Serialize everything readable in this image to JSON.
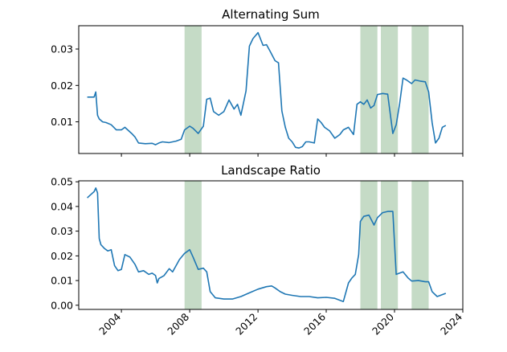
{
  "chart_data": [
    {
      "type": "line",
      "title": "Alternating Sum",
      "xlabel": "",
      "ylabel": "",
      "xlim": [
        2001.5,
        2024.0
      ],
      "ylim": [
        0.0013,
        0.0364
      ],
      "yticks": [
        0.01,
        0.02,
        0.03
      ],
      "ytick_labels": [
        "0.01",
        "0.02",
        "0.03"
      ],
      "line_color": "#1f77b4",
      "band_color": "#2e7d32",
      "shaded_intervals": [
        [
          2007.7,
          2008.7
        ],
        [
          2018.0,
          2019.0
        ],
        [
          2019.2,
          2020.2
        ],
        [
          2021.0,
          2022.0
        ]
      ],
      "x": [
        2002.0,
        2002.4,
        2002.5,
        2002.6,
        2002.7,
        2002.9,
        2003.1,
        2003.4,
        2003.7,
        2004.0,
        2004.2,
        2004.6,
        2004.8,
        2005.0,
        2005.4,
        2005.8,
        2006.0,
        2006.2,
        2006.4,
        2006.8,
        2007.2,
        2007.5,
        2007.7,
        2008.0,
        2008.2,
        2008.5,
        2008.8,
        2009.0,
        2009.2,
        2009.4,
        2009.7,
        2010.0,
        2010.3,
        2010.6,
        2010.8,
        2011.0,
        2011.3,
        2011.5,
        2011.7,
        2012.0,
        2012.3,
        2012.5,
        2012.7,
        2013.0,
        2013.2,
        2013.4,
        2013.6,
        2013.8,
        2014.0,
        2014.2,
        2014.4,
        2014.6,
        2014.8,
        2015.0,
        2015.3,
        2015.5,
        2015.7,
        2015.9,
        2016.2,
        2016.5,
        2016.8,
        2017.0,
        2017.3,
        2017.6,
        2017.8,
        2018.0,
        2018.2,
        2018.4,
        2018.6,
        2018.8,
        2019.0,
        2019.3,
        2019.6,
        2019.9,
        2020.1,
        2020.3,
        2020.5,
        2020.7,
        2021.0,
        2021.2,
        2021.5,
        2021.8,
        2022.0,
        2022.2,
        2022.4,
        2022.6,
        2022.8,
        2023.0
      ],
      "y": [
        0.0168,
        0.0168,
        0.0182,
        0.0118,
        0.0108,
        0.01,
        0.0098,
        0.0092,
        0.0078,
        0.0078,
        0.0085,
        0.0068,
        0.0058,
        0.0042,
        0.004,
        0.0041,
        0.0037,
        0.0042,
        0.0045,
        0.0043,
        0.0047,
        0.0052,
        0.0078,
        0.0088,
        0.0082,
        0.0068,
        0.0088,
        0.0162,
        0.0165,
        0.0128,
        0.0118,
        0.0128,
        0.016,
        0.0135,
        0.0148,
        0.0118,
        0.0185,
        0.0308,
        0.0328,
        0.0345,
        0.031,
        0.0312,
        0.0295,
        0.0268,
        0.0262,
        0.013,
        0.0085,
        0.0055,
        0.0045,
        0.003,
        0.0028,
        0.0032,
        0.0045,
        0.0045,
        0.0042,
        0.0108,
        0.0098,
        0.0085,
        0.0075,
        0.0055,
        0.0065,
        0.0078,
        0.0085,
        0.0065,
        0.0148,
        0.0155,
        0.0148,
        0.016,
        0.0138,
        0.0145,
        0.0175,
        0.0178,
        0.0176,
        0.0068,
        0.0092,
        0.015,
        0.022,
        0.0215,
        0.0205,
        0.0215,
        0.0212,
        0.021,
        0.0182,
        0.0098,
        0.0042,
        0.0055,
        0.0085,
        0.009
      ]
    },
    {
      "type": "line",
      "title": "Landscape Ratio",
      "xlabel": "",
      "ylabel": "",
      "xlim": [
        2001.5,
        2024.0
      ],
      "ylim": [
        -0.0017,
        0.0504
      ],
      "yticks": [
        0.0,
        0.01,
        0.02,
        0.03,
        0.04,
        0.05
      ],
      "ytick_labels": [
        "0.00",
        "0.01",
        "0.02",
        "0.03",
        "0.04",
        "0.05"
      ],
      "xticks": [
        2004,
        2008,
        2012,
        2016,
        2020,
        2024
      ],
      "xtick_labels": [
        "2004",
        "2008",
        "2012",
        "2016",
        "2020",
        "2024"
      ],
      "line_color": "#1f77b4",
      "band_color": "#2e7d32",
      "shaded_intervals": [
        [
          2007.7,
          2008.7
        ],
        [
          2018.0,
          2019.0
        ],
        [
          2019.2,
          2020.2
        ],
        [
          2021.0,
          2022.0
        ]
      ],
      "x": [
        2002.0,
        2002.2,
        2002.4,
        2002.5,
        2002.6,
        2002.7,
        2002.8,
        2003.0,
        2003.2,
        2003.4,
        2003.6,
        2003.8,
        2004.0,
        2004.2,
        2004.5,
        2004.8,
        2005.0,
        2005.3,
        2005.6,
        2005.8,
        2006.0,
        2006.1,
        2006.2,
        2006.5,
        2006.8,
        2007.0,
        2007.2,
        2007.4,
        2007.7,
        2008.0,
        2008.2,
        2008.5,
        2008.8,
        2009.0,
        2009.2,
        2009.5,
        2010.0,
        2010.5,
        2011.0,
        2011.5,
        2012.0,
        2012.5,
        2012.8,
        2013.0,
        2013.3,
        2013.6,
        2014.0,
        2014.5,
        2015.0,
        2015.5,
        2016.0,
        2016.5,
        2017.0,
        2017.3,
        2017.5,
        2017.7,
        2017.9,
        2018.0,
        2018.2,
        2018.5,
        2018.8,
        2019.0,
        2019.3,
        2019.6,
        2019.9,
        2020.1,
        2020.5,
        2020.8,
        2021.0,
        2021.4,
        2021.8,
        2022.0,
        2022.2,
        2022.5,
        2023.0
      ],
      "y": [
        0.0435,
        0.0448,
        0.046,
        0.0475,
        0.0455,
        0.027,
        0.0245,
        0.023,
        0.022,
        0.0225,
        0.016,
        0.014,
        0.0145,
        0.0205,
        0.0195,
        0.0165,
        0.0135,
        0.014,
        0.0125,
        0.013,
        0.012,
        0.009,
        0.0108,
        0.012,
        0.0148,
        0.0135,
        0.016,
        0.0185,
        0.021,
        0.0225,
        0.0195,
        0.0145,
        0.015,
        0.0135,
        0.0055,
        0.003,
        0.0025,
        0.0025,
        0.0035,
        0.005,
        0.0065,
        0.0075,
        0.0078,
        0.007,
        0.0055,
        0.0045,
        0.004,
        0.0035,
        0.0035,
        0.003,
        0.0032,
        0.0028,
        0.0015,
        0.009,
        0.011,
        0.0125,
        0.0205,
        0.034,
        0.036,
        0.0365,
        0.0325,
        0.0355,
        0.0375,
        0.038,
        0.038,
        0.0125,
        0.0135,
        0.011,
        0.0098,
        0.01,
        0.0095,
        0.0095,
        0.0055,
        0.0035,
        0.0048
      ]
    }
  ]
}
